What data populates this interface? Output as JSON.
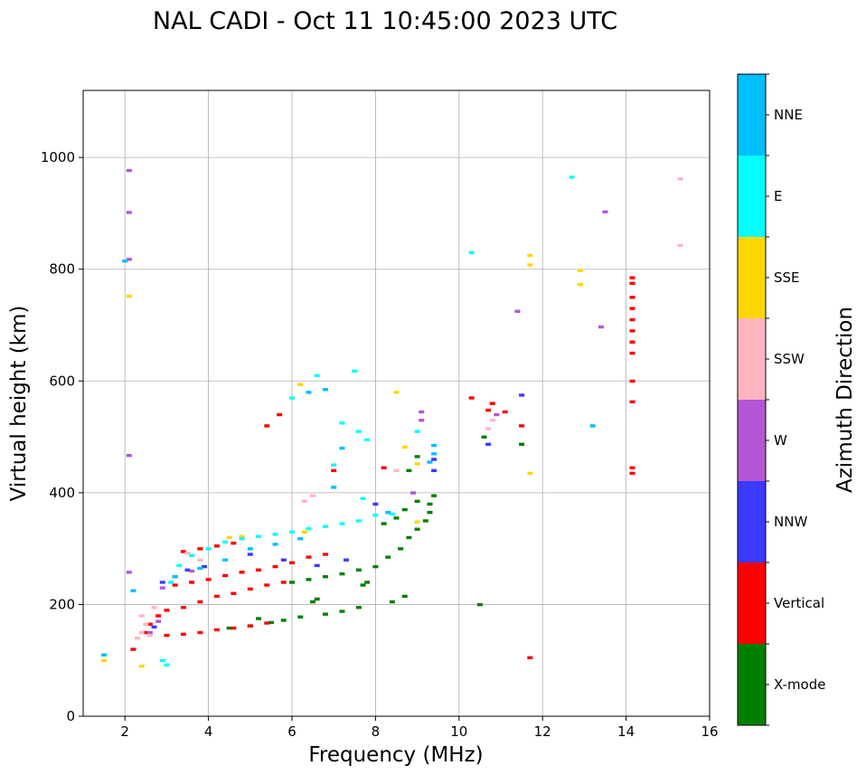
{
  "chart_data": {
    "type": "scatter",
    "title": "NAL CADI - Oct 11 10:45:00 2023 UTC",
    "xlabel": "Frequency (MHz)",
    "ylabel": "Virtual height (km)",
    "xlim": [
      1,
      16
    ],
    "ylim": [
      0,
      1120
    ],
    "xticks": [
      "2",
      "4",
      "6",
      "8",
      "10",
      "12",
      "14",
      "16"
    ],
    "yticks": [
      "0",
      "200",
      "400",
      "600",
      "800",
      "1000"
    ],
    "grid": true,
    "colorbar": {
      "label": "Azimuth Direction",
      "categories": [
        {
          "name": "X-mode",
          "color": "#008000"
        },
        {
          "name": "Vertical",
          "color": "#ff0000"
        },
        {
          "name": "NNW",
          "color": "#3a3aff"
        },
        {
          "name": "W",
          "color": "#b455d6"
        },
        {
          "name": "SSW",
          "color": "#ffb6c1"
        },
        {
          "name": "SSE",
          "color": "#ffd700"
        },
        {
          "name": "E",
          "color": "#00ffff"
        },
        {
          "name": "NNE",
          "color": "#00bfff"
        }
      ]
    },
    "series": [
      {
        "name": "X-mode",
        "points": [
          [
            4.5,
            158
          ],
          [
            5.0,
            162
          ],
          [
            5.5,
            168
          ],
          [
            5.8,
            172
          ],
          [
            6.2,
            178
          ],
          [
            6.8,
            183
          ],
          [
            7.2,
            188
          ],
          [
            7.6,
            195
          ],
          [
            5.2,
            175
          ],
          [
            6.0,
            240
          ],
          [
            6.4,
            245
          ],
          [
            6.8,
            250
          ],
          [
            7.2,
            255
          ],
          [
            7.6,
            262
          ],
          [
            8.0,
            268
          ],
          [
            8.3,
            285
          ],
          [
            8.6,
            300
          ],
          [
            8.8,
            320
          ],
          [
            9.0,
            335
          ],
          [
            9.2,
            350
          ],
          [
            9.3,
            365
          ],
          [
            9.3,
            380
          ],
          [
            9.4,
            395
          ],
          [
            8.2,
            345
          ],
          [
            8.5,
            355
          ],
          [
            8.7,
            370
          ],
          [
            9.0,
            385
          ],
          [
            7.7,
            235
          ],
          [
            7.8,
            240
          ],
          [
            6.5,
            205
          ],
          [
            6.6,
            210
          ],
          [
            8.4,
            205
          ],
          [
            8.7,
            215
          ],
          [
            10.5,
            200
          ],
          [
            11.5,
            487
          ],
          [
            10.6,
            500
          ],
          [
            8.8,
            440
          ],
          [
            9.0,
            465
          ]
        ]
      },
      {
        "name": "Vertical",
        "points": [
          [
            3.0,
            145
          ],
          [
            3.4,
            147
          ],
          [
            3.8,
            150
          ],
          [
            4.2,
            155
          ],
          [
            4.6,
            158
          ],
          [
            5.0,
            162
          ],
          [
            5.4,
            167
          ],
          [
            3.0,
            190
          ],
          [
            3.4,
            195
          ],
          [
            3.8,
            205
          ],
          [
            4.2,
            215
          ],
          [
            4.6,
            220
          ],
          [
            5.0,
            228
          ],
          [
            5.4,
            235
          ],
          [
            5.8,
            240
          ],
          [
            3.2,
            235
          ],
          [
            3.6,
            240
          ],
          [
            4.0,
            245
          ],
          [
            4.4,
            252
          ],
          [
            4.8,
            258
          ],
          [
            5.2,
            262
          ],
          [
            5.6,
            268
          ],
          [
            6.0,
            275
          ],
          [
            6.4,
            285
          ],
          [
            6.8,
            290
          ],
          [
            3.4,
            295
          ],
          [
            3.8,
            300
          ],
          [
            4.2,
            305
          ],
          [
            4.6,
            310
          ],
          [
            2.5,
            150
          ],
          [
            2.6,
            165
          ],
          [
            2.8,
            180
          ],
          [
            2.2,
            120
          ],
          [
            5.4,
            520
          ],
          [
            5.7,
            540
          ],
          [
            8.2,
            445
          ],
          [
            7.0,
            440
          ],
          [
            10.7,
            548
          ],
          [
            10.8,
            560
          ],
          [
            11.1,
            545
          ],
          [
            11.5,
            520
          ],
          [
            11.7,
            105
          ],
          [
            14.15,
            435
          ],
          [
            14.15,
            445
          ],
          [
            14.15,
            650
          ],
          [
            14.15,
            670
          ],
          [
            14.15,
            690
          ],
          [
            14.15,
            710
          ],
          [
            14.15,
            730
          ],
          [
            14.15,
            750
          ],
          [
            14.15,
            775
          ],
          [
            14.15,
            785
          ],
          [
            14.15,
            600
          ],
          [
            14.15,
            563
          ],
          [
            10.3,
            570
          ]
        ]
      },
      {
        "name": "NNW",
        "points": [
          [
            2.9,
            240
          ],
          [
            3.2,
            250
          ],
          [
            3.5,
            262
          ],
          [
            3.9,
            268
          ],
          [
            5.0,
            290
          ],
          [
            5.8,
            280
          ],
          [
            6.6,
            270
          ],
          [
            7.3,
            280
          ],
          [
            9.4,
            460
          ],
          [
            9.4,
            440
          ],
          [
            8.0,
            380
          ],
          [
            10.7,
            487
          ],
          [
            11.5,
            575
          ],
          [
            2.7,
            160
          ]
        ]
      },
      {
        "name": "W",
        "points": [
          [
            2.1,
            977
          ],
          [
            2.1,
            902
          ],
          [
            2.1,
            818
          ],
          [
            2.1,
            467
          ],
          [
            2.1,
            258
          ],
          [
            2.8,
            170
          ],
          [
            2.6,
            150
          ],
          [
            2.9,
            230
          ],
          [
            9.1,
            545
          ],
          [
            9.1,
            530
          ],
          [
            8.9,
            400
          ],
          [
            10.9,
            540
          ],
          [
            13.5,
            903
          ],
          [
            13.4,
            697
          ],
          [
            11.4,
            725
          ],
          [
            3.6,
            260
          ]
        ]
      },
      {
        "name": "SSW",
        "points": [
          [
            2.3,
            140
          ],
          [
            2.4,
            150
          ],
          [
            2.5,
            165
          ],
          [
            2.4,
            180
          ],
          [
            2.6,
            145
          ],
          [
            3.5,
            292
          ],
          [
            3.8,
            280
          ],
          [
            6.5,
            395
          ],
          [
            6.3,
            385
          ],
          [
            10.7,
            515
          ],
          [
            10.8,
            530
          ],
          [
            15.3,
            962
          ],
          [
            15.3,
            843
          ],
          [
            8.5,
            440
          ],
          [
            2.7,
            195
          ]
        ]
      },
      {
        "name": "SSE",
        "points": [
          [
            1.5,
            100
          ],
          [
            2.4,
            90
          ],
          [
            2.1,
            752
          ],
          [
            4.5,
            320
          ],
          [
            4.8,
            322
          ],
          [
            6.3,
            330
          ],
          [
            8.5,
            580
          ],
          [
            8.7,
            482
          ],
          [
            9.0,
            452
          ],
          [
            11.7,
            825
          ],
          [
            11.7,
            808
          ],
          [
            12.9,
            798
          ],
          [
            12.9,
            773
          ],
          [
            11.7,
            435
          ],
          [
            9.0,
            348
          ],
          [
            6.2,
            594
          ]
        ]
      },
      {
        "name": "E",
        "points": [
          [
            2.9,
            100
          ],
          [
            3.0,
            92
          ],
          [
            3.3,
            270
          ],
          [
            3.6,
            288
          ],
          [
            4.0,
            300
          ],
          [
            4.4,
            312
          ],
          [
            4.8,
            318
          ],
          [
            5.2,
            322
          ],
          [
            5.6,
            326
          ],
          [
            6.0,
            330
          ],
          [
            6.4,
            336
          ],
          [
            6.8,
            340
          ],
          [
            7.2,
            345
          ],
          [
            7.6,
            350
          ],
          [
            8.0,
            360
          ],
          [
            8.4,
            362
          ],
          [
            6.6,
            610
          ],
          [
            7.5,
            618
          ],
          [
            7.2,
            525
          ],
          [
            7.6,
            510
          ],
          [
            7.8,
            495
          ],
          [
            12.7,
            965
          ],
          [
            10.3,
            830
          ],
          [
            9.0,
            510
          ],
          [
            7.7,
            390
          ],
          [
            6.0,
            570
          ],
          [
            7.0,
            450
          ],
          [
            3.1,
            240
          ]
        ]
      },
      {
        "name": "NNE",
        "points": [
          [
            1.5,
            110
          ],
          [
            2.0,
            815
          ],
          [
            2.2,
            225
          ],
          [
            3.2,
            250
          ],
          [
            3.8,
            265
          ],
          [
            4.4,
            280
          ],
          [
            5.0,
            300
          ],
          [
            5.6,
            308
          ],
          [
            6.2,
            318
          ],
          [
            9.4,
            485
          ],
          [
            9.4,
            470
          ],
          [
            9.3,
            455
          ],
          [
            13.2,
            520
          ],
          [
            8.3,
            365
          ],
          [
            7.0,
            410
          ],
          [
            6.4,
            580
          ],
          [
            6.8,
            585
          ],
          [
            7.2,
            480
          ]
        ]
      }
    ]
  }
}
